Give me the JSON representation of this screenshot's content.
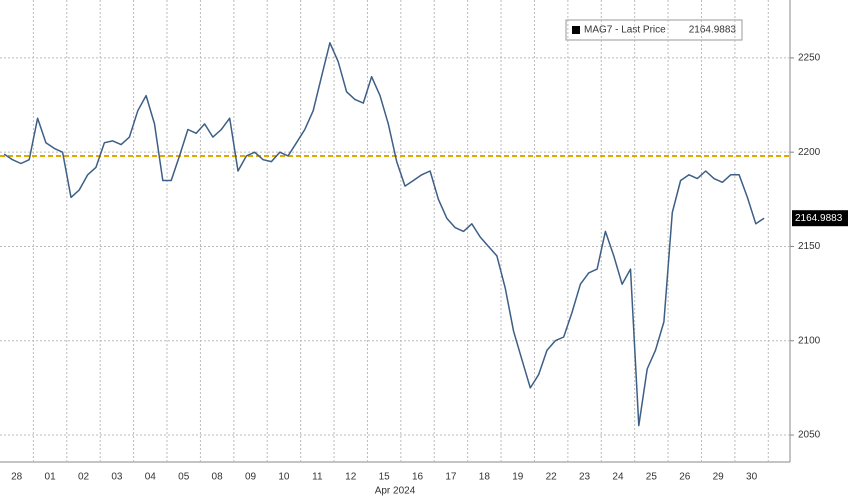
{
  "chart_data": {
    "type": "line",
    "x_label": "Apr 2024",
    "x": [
      0.125,
      0.375,
      0.625,
      0.875,
      1.125,
      1.375,
      1.625,
      1.875,
      2.125,
      2.375,
      2.625,
      2.875,
      3.125,
      3.375,
      3.625,
      3.875,
      4.125,
      4.375,
      4.625,
      4.875,
      5.125,
      5.375,
      5.625,
      5.875,
      6.125,
      6.375,
      6.625,
      6.875,
      7.125,
      7.375,
      7.625,
      7.875,
      8.125,
      8.375,
      8.625,
      8.875,
      9.125,
      9.375,
      9.625,
      9.875,
      10.125,
      10.375,
      10.625,
      10.875,
      11.125,
      11.375,
      11.625,
      11.875,
      12.125,
      12.375,
      12.625,
      12.875,
      13.125,
      13.375,
      13.625,
      13.875,
      14.125,
      14.375,
      14.625,
      14.875,
      15.125,
      15.375,
      15.625,
      15.875,
      16.125,
      16.375,
      16.625,
      16.875,
      17.125,
      17.375,
      17.625,
      17.875,
      18.125,
      18.375,
      18.625,
      18.875,
      19.125,
      19.375,
      19.625,
      19.875,
      20.125,
      20.375,
      20.625,
      20.875,
      21.125,
      21.375,
      21.625,
      21.875,
      22.125,
      22.375,
      22.625,
      22.875
    ],
    "series": [
      {
        "name": "MAG7 - Last Price",
        "color": "#3d5f86",
        "values": [
          2199,
          2196,
          2194,
          2196,
          2218,
          2205,
          2202,
          2200,
          2176,
          2180,
          2188,
          2192,
          2205,
          2206,
          2204,
          2208,
          2222,
          2230,
          2215,
          2185,
          2185,
          2198,
          2212,
          2210,
          2215,
          2208,
          2212,
          2218,
          2190,
          2198,
          2200,
          2196,
          2195,
          2200,
          2198,
          2205,
          2212,
          2222,
          2240,
          2258,
          2248,
          2232,
          2228,
          2226,
          2240,
          2230,
          2215,
          2195,
          2182,
          2185,
          2188,
          2190,
          2175,
          2165,
          2160,
          2158,
          2162,
          2155,
          2150,
          2145,
          2128,
          2105,
          2090,
          2075,
          2082,
          2095,
          2100,
          2102,
          2115,
          2130,
          2136,
          2138,
          2158,
          2145,
          2130,
          2138,
          2055,
          2085,
          2095,
          2110,
          2168,
          2185,
          2188,
          2186,
          2190,
          2186,
          2184,
          2188,
          2188,
          2176,
          2162,
          2164.9883
        ]
      }
    ],
    "reference_line": 2198,
    "reference_color": "#e0a800",
    "xlim": [
      0,
      23.65
    ],
    "xticks": [
      {
        "value": 0.5,
        "label": "28"
      },
      {
        "value": 1.5,
        "label": "01"
      },
      {
        "value": 2.5,
        "label": "02"
      },
      {
        "value": 3.5,
        "label": "03"
      },
      {
        "value": 4.5,
        "label": "04"
      },
      {
        "value": 5.5,
        "label": "05"
      },
      {
        "value": 6.5,
        "label": "08"
      },
      {
        "value": 7.5,
        "label": "09"
      },
      {
        "value": 8.5,
        "label": "10"
      },
      {
        "value": 9.5,
        "label": "11"
      },
      {
        "value": 10.5,
        "label": "12"
      },
      {
        "value": 11.5,
        "label": "15"
      },
      {
        "value": 12.5,
        "label": "16"
      },
      {
        "value": 13.5,
        "label": "17"
      },
      {
        "value": 14.5,
        "label": "18"
      },
      {
        "value": 15.5,
        "label": "19"
      },
      {
        "value": 16.5,
        "label": "22"
      },
      {
        "value": 17.5,
        "label": "23"
      },
      {
        "value": 18.5,
        "label": "24"
      },
      {
        "value": 19.5,
        "label": "25"
      },
      {
        "value": 20.5,
        "label": "26"
      },
      {
        "value": 21.5,
        "label": "29"
      },
      {
        "value": 22.5,
        "label": "30"
      }
    ],
    "ylim": [
      2035.7,
      2280.7
    ],
    "yticks": [
      2050,
      2100,
      2150,
      2200,
      2250
    ],
    "grid": true
  }
}
